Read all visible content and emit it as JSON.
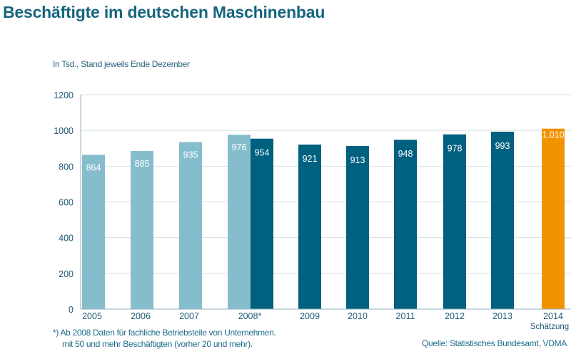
{
  "chart_data": {
    "type": "bar",
    "title": "Beschäftigte im deutschen Maschinenbau",
    "ylabel": "In Tsd., Stand jeweils Ende Dezember",
    "ylim": [
      0,
      1200
    ],
    "yticks": [
      0,
      200,
      400,
      600,
      800,
      1000,
      1200
    ],
    "grid": true,
    "bars": [
      {
        "category": "2005",
        "value": 864,
        "label": "864",
        "kind": "old"
      },
      {
        "category": "2006",
        "value": 885,
        "label": "885",
        "kind": "old"
      },
      {
        "category": "2007",
        "value": 935,
        "label": "935",
        "kind": "old"
      },
      {
        "category": "2008*",
        "value": 976,
        "label": "976",
        "kind": "old"
      },
      {
        "category": "2008*",
        "value": 954,
        "label": "954",
        "kind": "new"
      },
      {
        "category": "2009",
        "value": 921,
        "label": "921",
        "kind": "new"
      },
      {
        "category": "2010",
        "value": 913,
        "label": "913",
        "kind": "new"
      },
      {
        "category": "2011",
        "value": 948,
        "label": "948",
        "kind": "new"
      },
      {
        "category": "2012",
        "value": 978,
        "label": "978",
        "kind": "new"
      },
      {
        "category": "2013",
        "value": 993,
        "label": "993",
        "kind": "new"
      },
      {
        "category": "2014",
        "value": 1010,
        "label": "1.010",
        "kind": "estimate"
      }
    ],
    "categories": [
      "2005",
      "2006",
      "2007",
      "2008*",
      "2009",
      "2010",
      "2011",
      "2012",
      "2013",
      "2014"
    ],
    "estimate_note": "Schätzung",
    "colors": {
      "old": "#86bdcd",
      "new": "#00607f",
      "estimate": "#f39200",
      "grid": "#d6dfe3",
      "axis": "#1e5a74"
    }
  },
  "footnote": {
    "line1": "*)  Ab 2008 Daten für fachliche Betriebsteile von Unternehmen.",
    "line2": "mit 50 und mehr Beschäftigten (vorher 20 und mehr)."
  },
  "source": "Quelle: Statistisches Bundesamt, VDMA"
}
